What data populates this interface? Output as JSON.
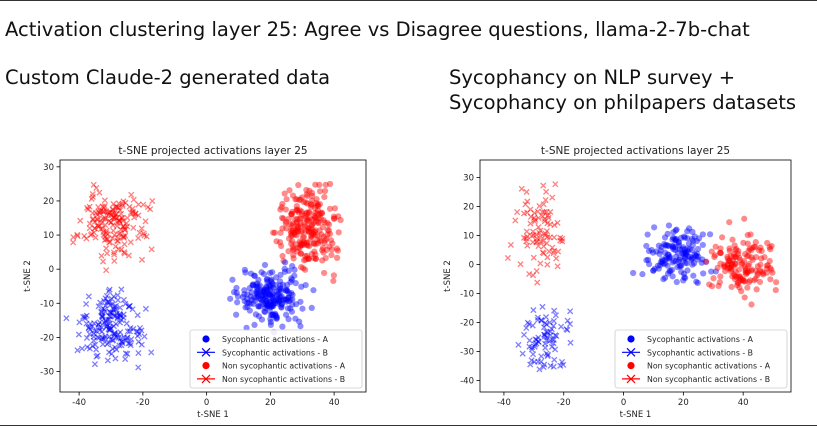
{
  "main_title": "Activation clustering layer 25: Agree vs Disagree questions, llama-2-7b-chat",
  "left_heading": "Custom Claude-2 generated data",
  "right_heading": [
    "Sycophancy on NLP survey +",
    "Sycophancy on philpapers datasets"
  ],
  "colors": {
    "sycophantic": "#0000ff",
    "non_sycophantic": "#ff0000",
    "frame": "#000000"
  },
  "chart_data": [
    {
      "type": "scatter",
      "title": "t-SNE projected activations layer 25",
      "xlabel": "t-SNE 1",
      "ylabel": "t-SNE 2",
      "xlim": [
        -46,
        50
      ],
      "ylim": [
        -36,
        32
      ],
      "xticks": [
        "-40",
        "-20",
        "0",
        "20",
        "40"
      ],
      "xtick_values": [
        -40,
        -20,
        0,
        20,
        40
      ],
      "yticks": [
        "30",
        "20",
        "10",
        "0",
        "-10",
        "-20",
        "-30"
      ],
      "ytick_values": [
        30,
        20,
        10,
        0,
        -10,
        -20,
        -30
      ],
      "legend_position": "lower right",
      "legend": [
        "Sycophantic activations - A",
        "Sycophantic activations - B",
        "Non sycophantic activations - A",
        "Non sycophantic activations - B"
      ],
      "clusters": [
        {
          "series": "Sycophantic activations - B",
          "marker": "x",
          "color": "#0000ff",
          "center": [
            -30,
            -17
          ],
          "spread": [
            8,
            8
          ],
          "n": 180
        },
        {
          "series": "Non sycophantic activations - B",
          "marker": "x",
          "color": "#ff0000",
          "center": [
            -30,
            13
          ],
          "spread": [
            9,
            8
          ],
          "n": 170
        },
        {
          "series": "Non sycophantic activations - A",
          "marker": "o",
          "color": "#ff0000",
          "center": [
            32,
            12
          ],
          "spread": [
            7,
            9
          ],
          "n": 240
        },
        {
          "series": "Sycophantic activations - A",
          "marker": "o",
          "color": "#0000ff",
          "center": [
            20,
            -8
          ],
          "spread": [
            8,
            6
          ],
          "n": 220
        }
      ]
    },
    {
      "type": "scatter",
      "title": "t-SNE projected activations layer 25",
      "xlabel": "t-SNE 1",
      "ylabel": "t-SNE 2",
      "xlim": [
        -48,
        56
      ],
      "ylim": [
        -44,
        36
      ],
      "xticks": [
        "-40",
        "-20",
        "0",
        "20",
        "40"
      ],
      "xtick_values": [
        -40,
        -20,
        0,
        20,
        40
      ],
      "yticks": [
        "30",
        "20",
        "10",
        "0",
        "-10",
        "-20",
        "-30",
        "-40"
      ],
      "ytick_values": [
        30,
        20,
        10,
        0,
        -10,
        -20,
        -30,
        -40
      ],
      "legend_position": "lower right",
      "legend": [
        "Sycophantic activations - A",
        "Sycophantic activations - B",
        "Non sycophantic activations - A",
        "Non sycophantic activations - B"
      ],
      "clusters": [
        {
          "series": "Sycophantic activations - B",
          "marker": "x",
          "color": "#0000ff",
          "center": [
            -27,
            -25
          ],
          "spread": [
            7,
            8
          ],
          "n": 80
        },
        {
          "series": "Non sycophantic activations - B",
          "marker": "x",
          "color": "#ff0000",
          "center": [
            -28,
            12
          ],
          "spread": [
            7,
            12
          ],
          "n": 90
        },
        {
          "series": "Sycophantic activations - A",
          "marker": "o",
          "color": "#0000ff",
          "center": [
            18,
            3
          ],
          "spread": [
            9,
            8
          ],
          "n": 150
        },
        {
          "series": "Non sycophantic activations - A",
          "marker": "o",
          "color": "#ff0000",
          "center": [
            40,
            0
          ],
          "spread": [
            8,
            9
          ],
          "n": 150
        }
      ]
    }
  ]
}
